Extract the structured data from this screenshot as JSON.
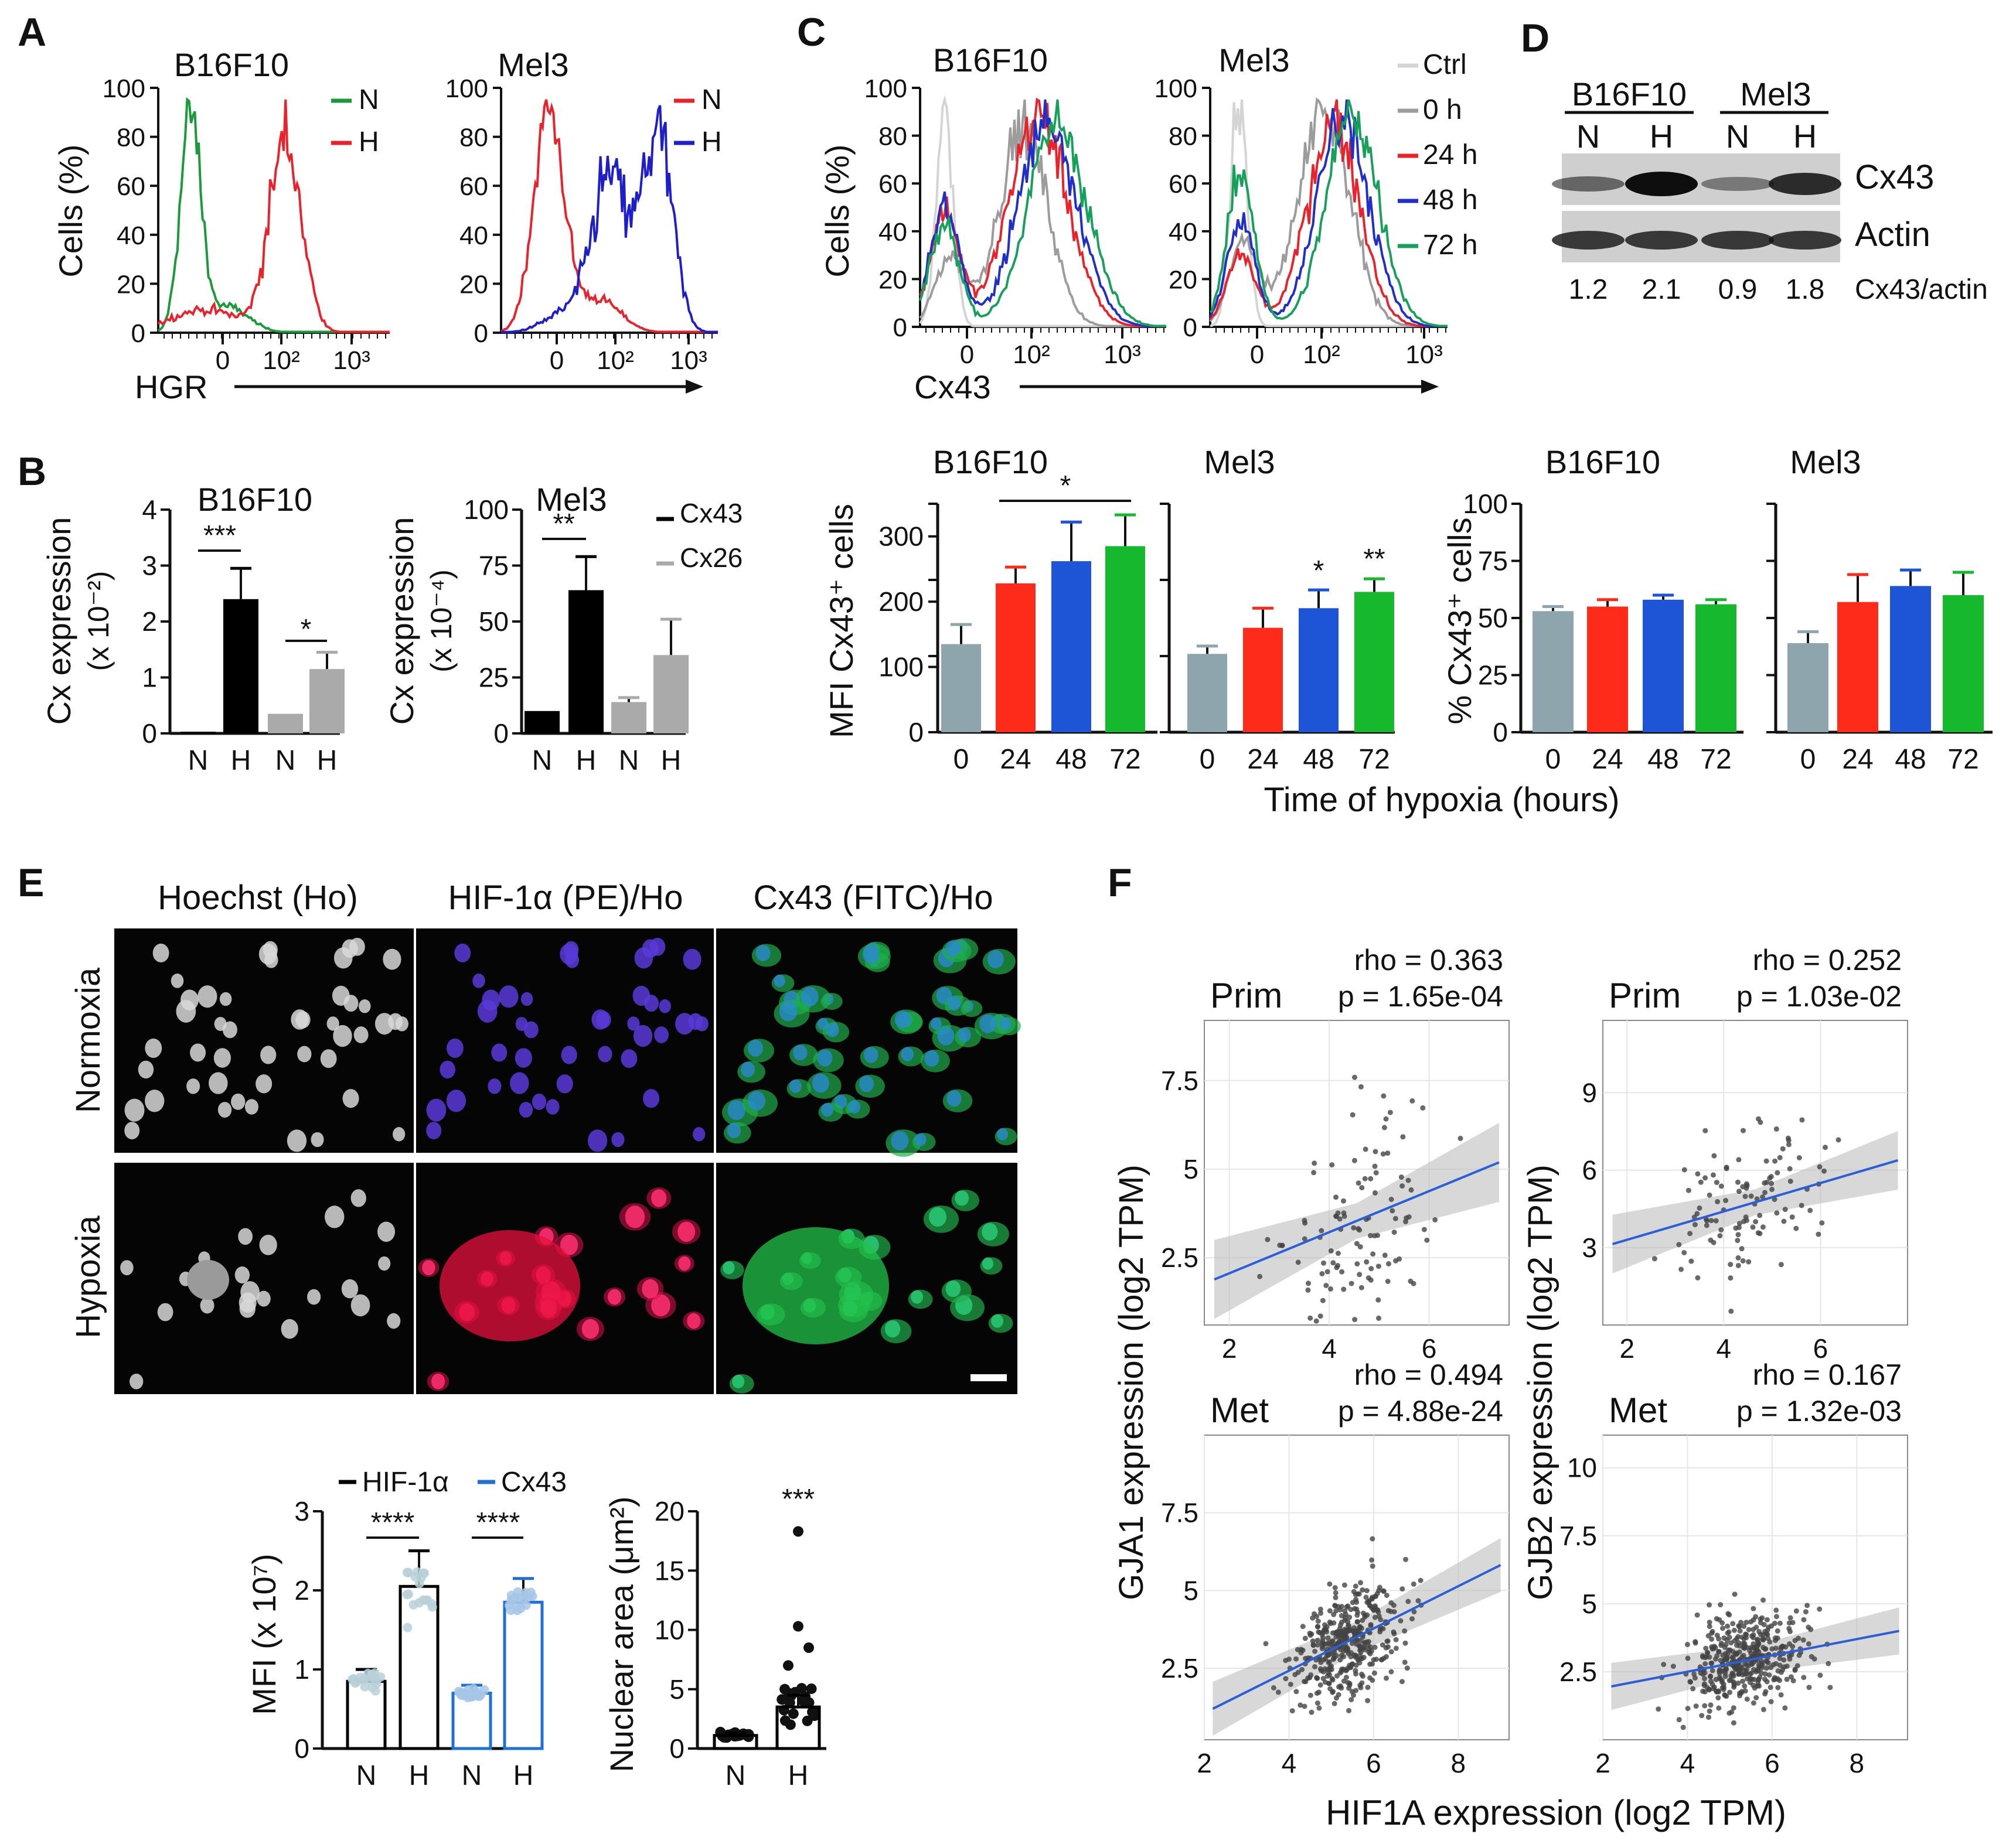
{
  "figure": {
    "A": {
      "label": "A",
      "left": {
        "title": "B16F10",
        "legend": [
          {
            "name": "N",
            "color": "#1a9a3a"
          },
          {
            "name": "H",
            "color": "#e8232b"
          }
        ]
      },
      "right": {
        "title": "Mel3",
        "legend": [
          {
            "name": "N",
            "color": "#e8232b"
          },
          {
            "name": "H",
            "color": "#1f1fc8"
          }
        ]
      },
      "ylabel": "Cells (%)",
      "xlabel": "HGR",
      "yticks": [
        "0",
        "20",
        "40",
        "60",
        "80",
        "100"
      ],
      "xticks": [
        "0",
        "10²",
        "10³"
      ]
    },
    "B": {
      "label": "B",
      "left": {
        "title": "B16F10",
        "ylabel_line1": "Cx expression",
        "ylabel_line2": "(x 10⁻²)",
        "yticks": [
          "0",
          "1",
          "2",
          "3",
          "4"
        ],
        "categories": [
          "N",
          "H",
          "N",
          "H"
        ],
        "values": [
          0.03,
          2.4,
          0.35,
          1.15
        ],
        "errors": [
          0.0,
          0.55,
          0.0,
          0.3
        ],
        "sig": [
          "***",
          "*"
        ]
      },
      "right": {
        "title": "Mel3",
        "ylabel_line1": "Cx expression",
        "ylabel_line2": "(x 10⁻⁴)",
        "yticks": [
          "0",
          "25",
          "50",
          "75",
          "100"
        ],
        "categories": [
          "N",
          "H",
          "N",
          "H"
        ],
        "values": [
          10,
          64,
          14,
          35
        ],
        "errors": [
          0,
          15,
          2,
          16
        ],
        "sig": [
          "**"
        ],
        "legend": [
          "Cx43",
          "Cx26"
        ]
      },
      "colors": [
        "#000000",
        "#000000",
        "#aaaaaa",
        "#aaaaaa"
      ]
    },
    "C": {
      "label": "C",
      "flow": {
        "left_title": "B16F10",
        "right_title": "Mel3",
        "ylabel": "Cells (%)",
        "xlabel": "Cx43",
        "legend": [
          {
            "name": "Ctrl",
            "color": "#d4d4d4"
          },
          {
            "name": "0 h",
            "color": "#9c9c9c"
          },
          {
            "name": "24 h",
            "color": "#e8232b"
          },
          {
            "name": "48 h",
            "color": "#1f2fc8"
          },
          {
            "name": "72 h",
            "color": "#16a05a"
          }
        ]
      },
      "mfi": {
        "left_title": "B16F10",
        "right_title": "Mel3",
        "ylabel": "MFI Cx43⁺ cells",
        "yticks": [
          "0",
          "100",
          "200",
          "300"
        ],
        "categories": [
          "0",
          "24",
          "48",
          "72"
        ],
        "b16_values": [
          135,
          228,
          262,
          285
        ],
        "b16_errors": [
          30,
          25,
          60,
          48
        ],
        "mel3_values": [
          120,
          160,
          190,
          215
        ],
        "mel3_errors": [
          12,
          30,
          28,
          20
        ],
        "sig_b16": "*",
        "sig_mel3": [
          "*",
          "**"
        ]
      },
      "pct": {
        "left_title": "B16F10",
        "right_title": "Mel3",
        "ylabel": "% Cx43⁺ cells",
        "yticks": [
          "0",
          "25",
          "50",
          "75",
          "100"
        ],
        "categories": [
          "0",
          "24",
          "48",
          "72"
        ],
        "b16_values": [
          53,
          55,
          58,
          56
        ],
        "b16_errors": [
          2,
          3,
          2,
          2
        ],
        "mel3_values": [
          39,
          57,
          64,
          60
        ],
        "mel3_errors": [
          5,
          12,
          7,
          10
        ]
      },
      "xlabel": "Time of hypoxia (hours)",
      "bar_colors": [
        "#8fa5ad",
        "#ff2b1a",
        "#1e55d6",
        "#16b82e"
      ]
    },
    "D": {
      "label": "D",
      "cell1": "B16F10",
      "cell2": "Mel3",
      "lanes": [
        "N",
        "H",
        "N",
        "H"
      ],
      "bands": [
        "Cx43",
        "Actin"
      ],
      "ratios": [
        "1.2",
        "2.1",
        "0.9",
        "1.8"
      ],
      "ratio_label": "Cx43/actin"
    },
    "E": {
      "label": "E",
      "columns": [
        "Hoechst (Ho)",
        "HIF-1α (PE)/Ho",
        "Cx43 (FITC)/Ho"
      ],
      "rows": [
        "Normoxia",
        "Hypoxia"
      ],
      "mfi": {
        "ylabel": "MFI (x 10⁷)",
        "yticks": [
          "0",
          "1",
          "2",
          "3"
        ],
        "categories": [
          "N",
          "H",
          "N",
          "H"
        ],
        "values": [
          0.85,
          2.05,
          0.7,
          1.85
        ],
        "errors": [
          0.15,
          0.45,
          0.1,
          0.3
        ],
        "legend": [
          "HIF-1α",
          "Cx43"
        ],
        "colors": [
          "#000000",
          "#000000",
          "#1e6fd6",
          "#1e6fd6"
        ],
        "sig": [
          "****",
          "****"
        ]
      },
      "nuclear": {
        "ylabel": "Nuclear area (μm²)",
        "yticks": [
          "0",
          "5",
          "10",
          "15",
          "20"
        ],
        "categories": [
          "N",
          "H"
        ],
        "values": [
          1.1,
          3.5
        ],
        "errors": [
          0.2,
          1.0
        ],
        "sig": "***"
      }
    },
    "F": {
      "label": "F",
      "ylabel_left": "GJA1 expression (log2 TPM)",
      "ylabel_right": "GJB2 expression (log2 TPM)",
      "xlabel": "HIF1A expression (log2 TPM)",
      "panels": [
        {
          "name": "Prim",
          "rho": "rho = 0.363",
          "p": "p = 1.65e-04",
          "xticks": [
            "2",
            "4",
            "6"
          ],
          "yticks": [
            "2.5",
            "5",
            "7.5"
          ]
        },
        {
          "name": "Prim",
          "rho": "rho = 0.252",
          "p": "p = 1.03e-02",
          "xticks": [
            "2",
            "4",
            "6"
          ],
          "yticks": [
            "3",
            "6",
            "9"
          ]
        },
        {
          "name": "Met",
          "rho": "rho = 0.494",
          "p": "p = 4.88e-24",
          "xticks": [
            "2",
            "4",
            "6",
            "8"
          ],
          "yticks": [
            "2.5",
            "5",
            "7.5"
          ]
        },
        {
          "name": "Met",
          "rho": "rho = 0.167",
          "p": "p = 1.32e-03",
          "xticks": [
            "2",
            "4",
            "6",
            "8"
          ],
          "yticks": [
            "2.5",
            "5",
            "7.5",
            "10"
          ]
        }
      ]
    }
  }
}
